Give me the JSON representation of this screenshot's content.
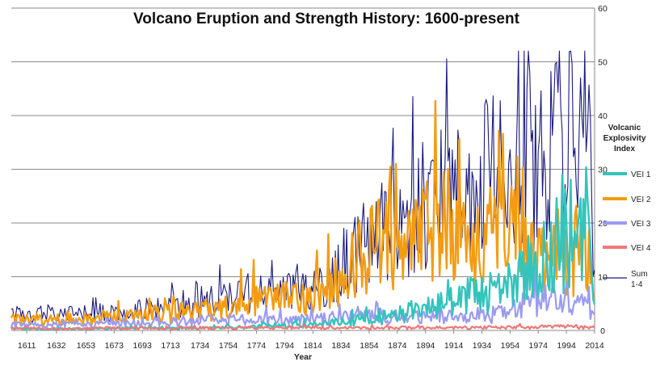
{
  "chart_data": {
    "type": "line",
    "title": "Volcano Eruption and Strength History: 1600-present",
    "xlabel": "Year",
    "ylabel": "",
    "xlim": [
      1600,
      2014
    ],
    "ylim": [
      0,
      60
    ],
    "y_ticks": [
      0,
      10,
      20,
      30,
      40,
      50,
      60
    ],
    "x_ticks": [
      1611,
      1632,
      1653,
      1673,
      1693,
      1713,
      1734,
      1754,
      1774,
      1794,
      1814,
      1834,
      1854,
      1874,
      1894,
      1914,
      1934,
      1954,
      1974,
      1994,
      2014
    ],
    "y_axis_side": "right",
    "grid": "horizontal",
    "legend": {
      "title_lines": [
        "Volcanic",
        "Explosivity",
        "Index"
      ],
      "placement": "right"
    },
    "series": [
      {
        "name": "VEI 1",
        "color": "#33c4bc",
        "keypoints": [
          [
            1600,
            0.3
          ],
          [
            1650,
            0.3
          ],
          [
            1700,
            0.5
          ],
          [
            1750,
            0.5
          ],
          [
            1790,
            0.8
          ],
          [
            1830,
            1.5
          ],
          [
            1870,
            2.5
          ],
          [
            1890,
            4
          ],
          [
            1910,
            5
          ],
          [
            1920,
            6
          ],
          [
            1935,
            7
          ],
          [
            1950,
            8
          ],
          [
            1960,
            10
          ],
          [
            1975,
            13
          ],
          [
            1990,
            15
          ],
          [
            2000,
            15
          ],
          [
            2008,
            20
          ],
          [
            2014,
            5
          ]
        ]
      },
      {
        "name": "VEI 2",
        "color": "#f39c12",
        "keypoints": [
          [
            1600,
            2
          ],
          [
            1650,
            2
          ],
          [
            1700,
            3
          ],
          [
            1750,
            4
          ],
          [
            1770,
            6
          ],
          [
            1790,
            6
          ],
          [
            1810,
            6
          ],
          [
            1830,
            9
          ],
          [
            1850,
            14
          ],
          [
            1860,
            17
          ],
          [
            1880,
            14
          ],
          [
            1895,
            20
          ],
          [
            1905,
            21
          ],
          [
            1920,
            17
          ],
          [
            1935,
            18
          ],
          [
            1950,
            20
          ],
          [
            1965,
            14
          ],
          [
            1980,
            13
          ],
          [
            1995,
            12
          ],
          [
            2008,
            17
          ],
          [
            2014,
            8
          ]
        ]
      },
      {
        "name": "VEI 3",
        "color": "#9b9bf0",
        "keypoints": [
          [
            1600,
            1
          ],
          [
            1650,
            1
          ],
          [
            1700,
            1.5
          ],
          [
            1750,
            2
          ],
          [
            1800,
            2
          ],
          [
            1850,
            2.5
          ],
          [
            1900,
            2.5
          ],
          [
            1950,
            3
          ],
          [
            1960,
            4.5
          ],
          [
            1975,
            6
          ],
          [
            1990,
            5
          ],
          [
            2005,
            6
          ],
          [
            2014,
            2
          ]
        ]
      },
      {
        "name": "VEI 4",
        "color": "#f07878",
        "keypoints": [
          [
            1600,
            0.4
          ],
          [
            1700,
            0.4
          ],
          [
            1800,
            0.5
          ],
          [
            1900,
            0.5
          ],
          [
            1960,
            0.6
          ],
          [
            2000,
            0.7
          ],
          [
            2014,
            0.5
          ]
        ]
      },
      {
        "name": "Sum\n1-4",
        "color": "#1a1a7e",
        "keypoints": [
          [
            1600,
            3
          ],
          [
            1650,
            3
          ],
          [
            1700,
            4
          ],
          [
            1750,
            6
          ],
          [
            1770,
            7
          ],
          [
            1790,
            7
          ],
          [
            1810,
            7
          ],
          [
            1830,
            10
          ],
          [
            1850,
            16
          ],
          [
            1860,
            20
          ],
          [
            1880,
            19
          ],
          [
            1895,
            25
          ],
          [
            1905,
            27
          ],
          [
            1920,
            24
          ],
          [
            1935,
            28
          ],
          [
            1950,
            31
          ],
          [
            1960,
            30
          ],
          [
            1975,
            32
          ],
          [
            1990,
            33
          ],
          [
            2000,
            38
          ],
          [
            2005,
            43
          ],
          [
            2010,
            35
          ],
          [
            2014,
            15
          ]
        ]
      }
    ]
  }
}
